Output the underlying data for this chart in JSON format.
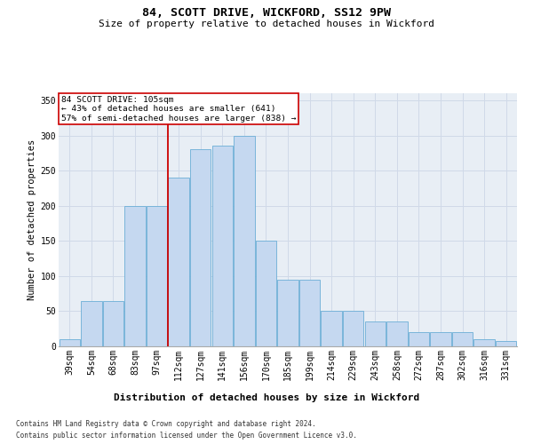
{
  "title1": "84, SCOTT DRIVE, WICKFORD, SS12 9PW",
  "title2": "Size of property relative to detached houses in Wickford",
  "xlabel": "Distribution of detached houses by size in Wickford",
  "ylabel": "Number of detached properties",
  "categories": [
    "39sqm",
    "54sqm",
    "68sqm",
    "83sqm",
    "97sqm",
    "112sqm",
    "127sqm",
    "141sqm",
    "156sqm",
    "170sqm",
    "185sqm",
    "199sqm",
    "214sqm",
    "229sqm",
    "243sqm",
    "258sqm",
    "272sqm",
    "287sqm",
    "302sqm",
    "316sqm",
    "331sqm"
  ],
  "bar_heights": [
    10,
    65,
    65,
    200,
    200,
    240,
    280,
    285,
    300,
    150,
    95,
    95,
    50,
    50,
    35,
    35,
    20,
    20,
    20,
    10,
    8
  ],
  "bar_color": "#c5d8f0",
  "bar_edge_color": "#6baed6",
  "grid_color": "#d0d9e8",
  "background_color": "#e8eef5",
  "annotation_border_color": "#cc0000",
  "vline_color": "#cc0000",
  "vline_x": 4.5,
  "annotation_line1": "84 SCOTT DRIVE: 105sqm",
  "annotation_line2": "← 43% of detached houses are smaller (641)",
  "annotation_line3": "57% of semi-detached houses are larger (838) →",
  "footer1": "Contains HM Land Registry data © Crown copyright and database right 2024.",
  "footer2": "Contains public sector information licensed under the Open Government Licence v3.0.",
  "ylim": [
    0,
    360
  ],
  "yticks": [
    0,
    50,
    100,
    150,
    200,
    250,
    300,
    350
  ],
  "title1_fontsize": 9.5,
  "title2_fontsize": 8,
  "ylabel_fontsize": 7.5,
  "xlabel_fontsize": 8,
  "tick_fontsize": 7,
  "footer_fontsize": 5.5
}
